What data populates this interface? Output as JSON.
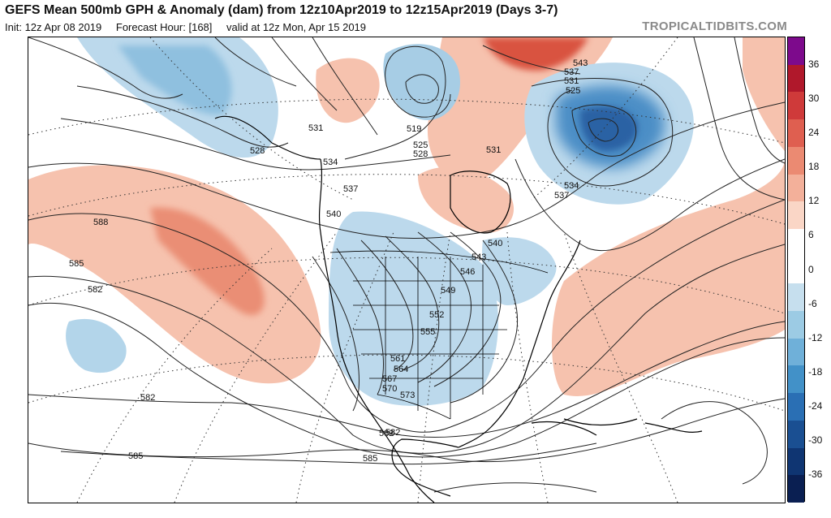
{
  "header": {
    "title": "GEFS Mean 500mb GPH & Anomaly (dam) from 12z10Apr2019 to 12z15Apr2019 (Days 3-7)",
    "init": "Init: 12z Apr 08 2019",
    "forecast_hour": "Forecast Hour: [168]",
    "valid": "valid at 12z Mon, Apr 15 2019",
    "credit": "TROPICALTIDBITS.COM"
  },
  "colorbar": {
    "labels": [
      "36",
      "30",
      "24",
      "18",
      "12",
      "6",
      "0",
      "-6",
      "-12",
      "-18",
      "-24",
      "-30",
      "-36"
    ],
    "colors": [
      "#7d0a8c",
      "#b0182b",
      "#cf3a3a",
      "#df5f50",
      "#eb8a72",
      "#f3b09a",
      "#fad6c6",
      "#ffffff",
      "#ffffff",
      "#c6dfee",
      "#9ccbe4",
      "#6fb0d9",
      "#4291c8",
      "#2a6fb4",
      "#1a4f92",
      "#0f3572",
      "#0a1f52"
    ]
  },
  "contour_labels": [
    "588",
    "585",
    "582",
    "582",
    "585",
    "585",
    "582",
    "528",
    "531",
    "534",
    "537",
    "540",
    "519",
    "525",
    "528",
    "531",
    "543",
    "537",
    "531",
    "525",
    "534",
    "537",
    "540",
    "543",
    "546",
    "549",
    "552",
    "555",
    "561",
    "564",
    "567",
    "570",
    "573",
    "582"
  ],
  "colors": {
    "positive_anomaly": "#f2b29c",
    "strong_positive": "#e07a62",
    "negative_anomaly": "#a9cfe5",
    "strong_negative": "#2d6fb3",
    "contour": "#222222",
    "land": "#ffffff"
  }
}
